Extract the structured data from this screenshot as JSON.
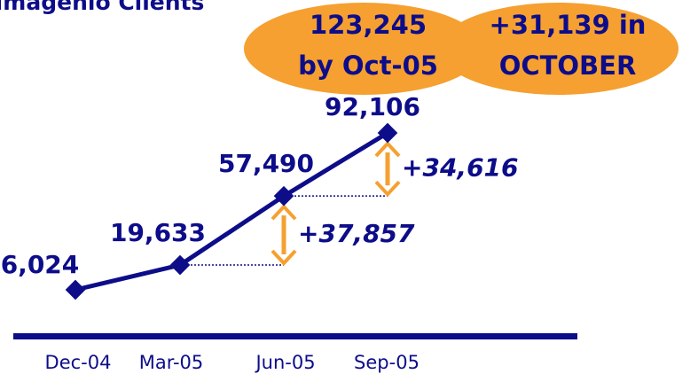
{
  "chart_data": {
    "type": "line",
    "title": "Imagenio Clients",
    "categories": [
      "Dec-04",
      "Mar-05",
      "Jun-05",
      "Sep-05"
    ],
    "series": [
      {
        "name": "Imagenio Clients",
        "color": "#0d0d8a",
        "values": [
          6024,
          19633,
          57490,
          92106
        ],
        "value_labels": [
          "6,024",
          "19,633",
          "57,490",
          "92,106"
        ]
      }
    ],
    "change_labels": [
      "+37,857",
      "+34,616"
    ],
    "callouts": [
      [
        "123,245",
        "by Oct-05"
      ],
      [
        "+31,139 in",
        "OCTOBER"
      ]
    ],
    "annotation_color": "#f5a030"
  }
}
